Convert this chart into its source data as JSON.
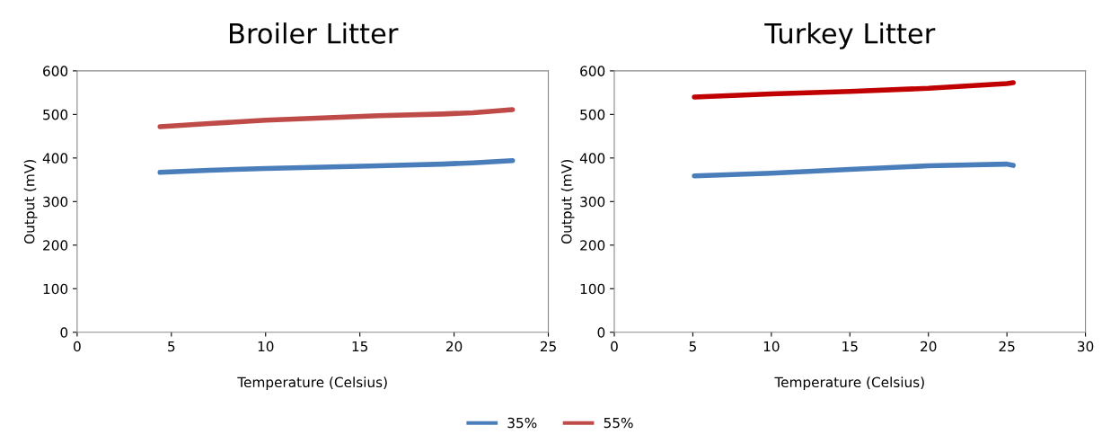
{
  "chart_data": [
    {
      "type": "line",
      "title": "Broiler Litter",
      "xlabel": "Temperature (Celsius)",
      "ylabel": "Output (mV)",
      "xlim": [
        0,
        25
      ],
      "xticks": [
        0,
        5,
        10,
        15,
        20,
        25
      ],
      "ylim": [
        0,
        600
      ],
      "yticks": [
        0,
        100,
        200,
        300,
        400,
        500,
        600
      ],
      "grid": false,
      "legend": "bottom",
      "series": [
        {
          "name": "35%",
          "color": "#4a7ebb",
          "x": [
            4.4,
            7,
            10,
            13,
            16,
            19.4,
            21,
            23.1
          ],
          "values": [
            367,
            372,
            376,
            379,
            382,
            386,
            389,
            394
          ]
        },
        {
          "name": "55%",
          "color": "#be4b48",
          "x": [
            4.4,
            7,
            10,
            13,
            16,
            19.4,
            21,
            23.1
          ],
          "values": [
            472,
            479,
            487,
            492,
            497,
            501,
            504,
            511
          ]
        }
      ]
    },
    {
      "type": "line",
      "title": "Turkey Litter",
      "xlabel": "Temperature (Celsius)",
      "ylabel": "Output (mV)",
      "xlim": [
        0,
        30
      ],
      "xticks": [
        0,
        5,
        10,
        15,
        20,
        25,
        30
      ],
      "ylim": [
        0,
        600
      ],
      "yticks": [
        0,
        100,
        200,
        300,
        400,
        500,
        600
      ],
      "grid": false,
      "series": [
        {
          "color": "#4a7ebb",
          "x": [
            5.1,
            10,
            15,
            20,
            25,
            25.4
          ],
          "values": [
            359,
            365,
            374,
            382,
            386,
            383
          ]
        },
        {
          "color": "#c00000",
          "x": [
            5.1,
            10,
            15,
            20,
            25,
            25.4
          ],
          "values": [
            540,
            547,
            553,
            560,
            571,
            573
          ]
        }
      ]
    }
  ]
}
